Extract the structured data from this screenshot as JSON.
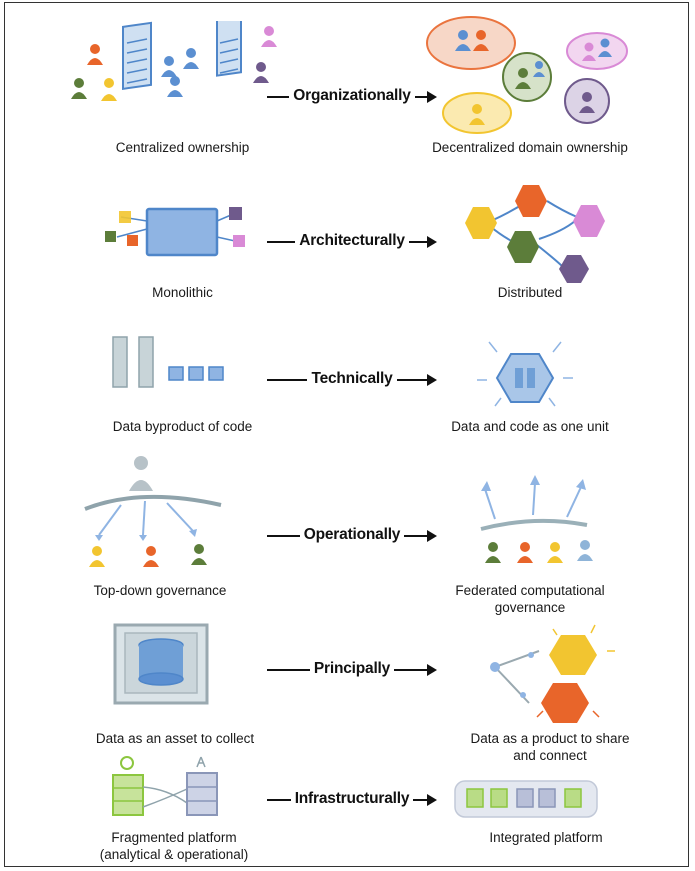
{
  "rows": [
    {
      "left": "Centralized ownership",
      "shift": "Organizationally",
      "right": "Decentralized domain ownership"
    },
    {
      "left": "Monolithic",
      "shift": "Architecturally",
      "right": "Distributed"
    },
    {
      "left": "Data byproduct of code",
      "shift": "Technically",
      "right": "Data and code as one unit"
    },
    {
      "left": "Top-down governance",
      "shift": "Operationally",
      "right": "Federated computational\ngovernance"
    },
    {
      "left": "Data as an asset to collect",
      "shift": "Principally",
      "right": "Data as a product to share\nand  connect"
    },
    {
      "left": "Fragmented platform\n(analytical & operational)",
      "shift": "Infrastructurally",
      "right": "Integrated platform"
    }
  ],
  "colors": {
    "orange": "#e8652a",
    "yellow": "#f2c530",
    "green": "#5c7d3a",
    "purple": "#6f5a8c",
    "pink": "#d98ad6",
    "blue": "#5b8fd1",
    "lightblue": "#8fb4d8",
    "gray": "#9aa6ad",
    "lime": "#8cc63f"
  }
}
